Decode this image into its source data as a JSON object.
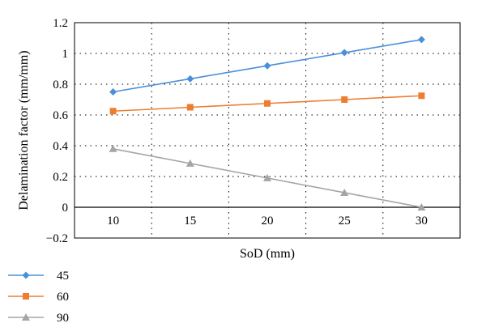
{
  "chart_data": {
    "type": "line",
    "xlabel": "SoD (mm)",
    "ylabel": "Delamination factor (mm/mm)",
    "categories": [
      "10",
      "15",
      "20",
      "25",
      "30"
    ],
    "ylim": [
      -0.2,
      1.2
    ],
    "yticks": [
      "−0.2",
      "0",
      "0.2",
      "0.4",
      "0.6",
      "0.8",
      "1",
      "1.2"
    ],
    "ytick_values": [
      -0.2,
      0,
      0.2,
      0.4,
      0.6,
      0.8,
      1,
      1.2
    ],
    "grid": "dotted",
    "legend_position": "bottom-left",
    "series": [
      {
        "name": "45",
        "values": [
          0.75,
          0.835,
          0.92,
          1.005,
          1.09
        ],
        "color": "#4a90d9",
        "marker": "diamond"
      },
      {
        "name": "60",
        "values": [
          0.625,
          0.65,
          0.675,
          0.7,
          0.725
        ],
        "color": "#ed7d31",
        "marker": "square"
      },
      {
        "name": "90",
        "values": [
          0.38,
          0.285,
          0.19,
          0.095,
          0.0
        ],
        "color": "#a5a5a5",
        "marker": "triangle"
      }
    ]
  }
}
